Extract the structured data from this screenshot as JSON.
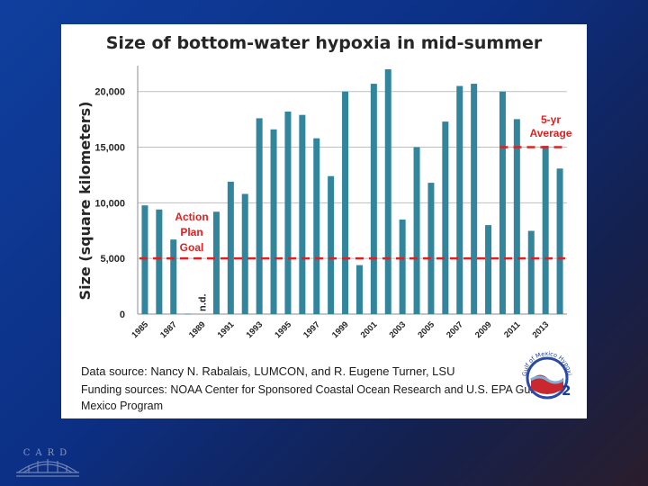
{
  "chart_data": {
    "type": "bar",
    "title": "Size of bottom-water hypoxia in mid-summer",
    "xlabel": "",
    "ylabel": "Size (square kilometers)",
    "ylim": [
      0,
      22000
    ],
    "yticks": [
      0,
      5000,
      10000,
      15000,
      20000
    ],
    "ytick_labels": [
      "0",
      "5,000",
      "10,000",
      "15,000",
      "20,000"
    ],
    "categories": [
      "1985",
      "1986",
      "1987",
      "1988",
      "1989",
      "1990",
      "1991",
      "1992",
      "1993",
      "1994",
      "1995",
      "1996",
      "1997",
      "1998",
      "1999",
      "2000",
      "2001",
      "2002",
      "2003",
      "2004",
      "2005",
      "2006",
      "2007",
      "2008",
      "2009",
      "2010",
      "2011",
      "2012",
      "2013",
      "2014"
    ],
    "xtick_labels": [
      "1985",
      "1987",
      "1989",
      "1991",
      "1993",
      "1995",
      "1997",
      "1999",
      "2001",
      "2003",
      "2005",
      "2007",
      "2009",
      "2011",
      "2013"
    ],
    "values": [
      9770,
      9400,
      6700,
      40,
      null,
      9200,
      11900,
      10800,
      17600,
      16600,
      18200,
      17900,
      15800,
      12400,
      20000,
      4400,
      20700,
      22000,
      8500,
      15000,
      11800,
      17300,
      20500,
      20700,
      8000,
      20000,
      17520,
      7480,
      15120,
      13080
    ],
    "missing_label": "n.d.",
    "reference_lines": [
      {
        "label": "Action Plan Goal",
        "label_lines": [
          "Action",
          "Plan",
          "Goal"
        ],
        "value": 5000,
        "color": "#e02020"
      },
      {
        "label": "5-yr Average",
        "label_lines": [
          "5-yr",
          "Average"
        ],
        "value": 15000,
        "color": "#e02020"
      }
    ],
    "bar_color": "#31859c",
    "grid": true
  },
  "sources": {
    "data_source": "Data source: Nancy N. Rabalais, LUMCON, and R. Eugene Turner, LSU",
    "funding_source": "Funding sources: NOAA Center for Sponsored Coastal Ocean Research and U.S. EPA Gulf of Mexico Program"
  },
  "logos": {
    "hypoxia_logo_text": "Gulf of Mexico Hypoxia",
    "card_logo_text": "CARD"
  },
  "colors": {
    "background": "#0c2f84",
    "card": "#ffffff",
    "accent": "#e02020"
  }
}
